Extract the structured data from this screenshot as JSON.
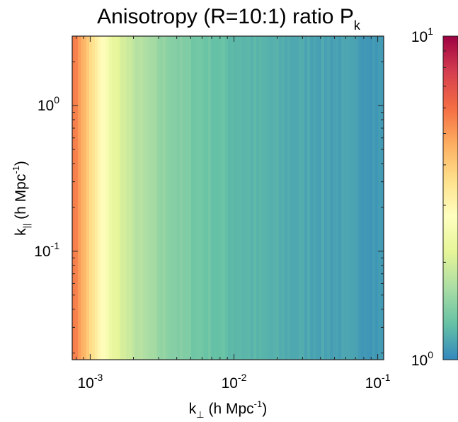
{
  "chart_data": {
    "type": "heatmap",
    "title": "Anisotropy (R=10:1) ratio P",
    "title_subscript": "k",
    "xlabel": {
      "text": "k",
      "sub": "⊥",
      "unit": " (h Mpc",
      "exp": "-1",
      "close": ")"
    },
    "ylabel": {
      "text": "k",
      "sub": "||",
      "unit": " (h Mpc",
      "exp": "-1",
      "close": ")"
    },
    "x_scale": "log",
    "y_scale": "log",
    "xlim": [
      0.00075,
      0.11
    ],
    "ylim": [
      0.018,
      3.0
    ],
    "x_ticks": [
      {
        "value": 0.001,
        "base": "10",
        "exp": "-3"
      },
      {
        "value": 0.01,
        "base": "10",
        "exp": "-2"
      },
      {
        "value": 0.1,
        "base": "10",
        "exp": "-1"
      }
    ],
    "y_ticks": [
      {
        "value": 1,
        "base": "10",
        "exp": "0"
      },
      {
        "value": 0.1,
        "base": "10",
        "exp": "-1"
      }
    ],
    "colorbar": {
      "scale": "log",
      "range": [
        1,
        10
      ],
      "colormap": "Spectral_r",
      "ticks": [
        {
          "value": 10,
          "base": "10",
          "exp": "1"
        },
        {
          "value": 1,
          "base": "10",
          "exp": "0"
        }
      ],
      "colors": [
        "#3288bd",
        "#66c2a5",
        "#abdda4",
        "#e6f598",
        "#ffffbf",
        "#fee08b",
        "#fdae61",
        "#f46d43",
        "#d53e4f",
        "#9e0142"
      ]
    },
    "structure": "ratio varies with k⊥ only (vertical bands); nearly constant along k||",
    "ratio_profile": [
      {
        "k_perp": 0.00075,
        "ratio": 6.0
      },
      {
        "k_perp": 0.0009,
        "ratio": 4.5
      },
      {
        "k_perp": 0.0011,
        "ratio": 3.2
      },
      {
        "k_perp": 0.0014,
        "ratio": 2.3
      },
      {
        "k_perp": 0.002,
        "ratio": 1.8
      },
      {
        "k_perp": 0.003,
        "ratio": 1.55
      },
      {
        "k_perp": 0.005,
        "ratio": 1.38
      },
      {
        "k_perp": 0.01,
        "ratio": 1.25
      },
      {
        "k_perp": 0.02,
        "ratio": 1.18
      },
      {
        "k_perp": 0.05,
        "ratio": 1.12
      },
      {
        "k_perp": 0.11,
        "ratio": 1.08
      }
    ],
    "grid": false,
    "legend": "colorbar-right"
  }
}
